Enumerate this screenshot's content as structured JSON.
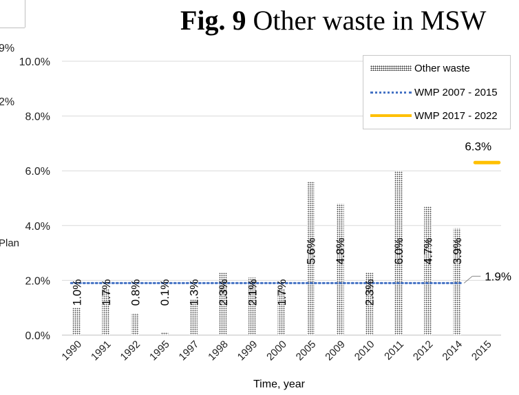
{
  "title": {
    "bold": "Fig. 9",
    "rest": " Other waste in MSW"
  },
  "edge_fragments": {
    "a": "9%",
    "b": "2%",
    "c": "Plan"
  },
  "chart_data": {
    "type": "bar",
    "categories": [
      "1990",
      "1991",
      "1992",
      "1995",
      "1997",
      "1998",
      "1999",
      "2000",
      "2005",
      "2009",
      "2010",
      "2011",
      "2012",
      "2014",
      "2015"
    ],
    "series": [
      {
        "name": "Other waste",
        "values": [
          1.0,
          1.7,
          0.8,
          0.1,
          1.3,
          2.3,
          2.1,
          1.7,
          5.6,
          4.8,
          2.3,
          6.0,
          4.7,
          3.9,
          null
        ],
        "labels": [
          "1.0%",
          "1.7%",
          "0.8%",
          "0.1%",
          "1.3%",
          "2.3%",
          "2.1%",
          "1.7%",
          "5.6%",
          "4.8%",
          "2.3%",
          "6.0%",
          "4.7%",
          "3.9%",
          ""
        ]
      },
      {
        "name": "WMP 2007 - 2015",
        "value": 1.9,
        "from": "1990",
        "to": "2014",
        "label": "1.9%"
      },
      {
        "name": "WMP 2017 - 2022",
        "value": 6.3,
        "from": "2014",
        "to": "2015",
        "label": "6.3%"
      }
    ],
    "yticks": [
      "0.0%",
      "2.0%",
      "4.0%",
      "6.0%",
      "8.0%",
      "10.0%"
    ],
    "ylim": [
      0,
      10
    ],
    "xlabel": "Time, year",
    "ylabel": "",
    "grid": true,
    "legend_position": "top-right",
    "colors": {
      "bar": "#333333",
      "wmp2007": "#4472c4",
      "wmp2017": "#ffc000",
      "grid": "#d9d9d9"
    }
  }
}
